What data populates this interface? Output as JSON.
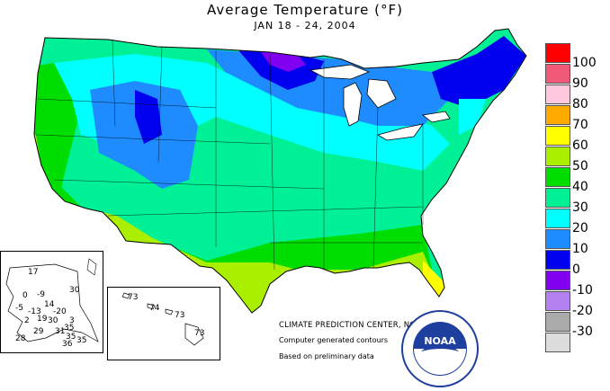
{
  "header": {
    "title": "Average Temperature (°F)",
    "subtitle": "JAN 18 - 24, 2004"
  },
  "legend": {
    "items": [
      {
        "label": "100",
        "color": "#ff0000"
      },
      {
        "label": "90",
        "color": "#f05a78"
      },
      {
        "label": "80",
        "color": "#ffc8dc"
      },
      {
        "label": "70",
        "color": "#ffaa00"
      },
      {
        "label": "60",
        "color": "#ffff00"
      },
      {
        "label": "50",
        "color": "#aaee00"
      },
      {
        "label": "40",
        "color": "#00dd00"
      },
      {
        "label": "30",
        "color": "#00f096"
      },
      {
        "label": "20",
        "color": "#00ffff"
      },
      {
        "label": "10",
        "color": "#1e8cff"
      },
      {
        "label": "0",
        "color": "#0000ee"
      },
      {
        "label": "-10",
        "color": "#8200f0"
      },
      {
        "label": "-20",
        "color": "#b482f0"
      },
      {
        "label": "-30",
        "color": "#aaaaaa"
      },
      {
        "label": "",
        "color": "#dcdcdc"
      }
    ]
  },
  "credits": {
    "line1": "CLIMATE PREDICTION CENTER, NOAA",
    "line2": "Computer generated contours",
    "line3": "Based on preliminary data"
  },
  "alaska": {
    "values": [
      "17",
      "30",
      "-9",
      "0",
      "14",
      "-5",
      "-20",
      "-13",
      "2",
      "19",
      "30",
      "3",
      "29",
      "35",
      "28",
      "31",
      "35",
      "36",
      "35"
    ]
  },
  "hawaii": {
    "values": [
      "73",
      "74",
      "73",
      "73"
    ]
  },
  "logo": {
    "text": "NOAA"
  }
}
